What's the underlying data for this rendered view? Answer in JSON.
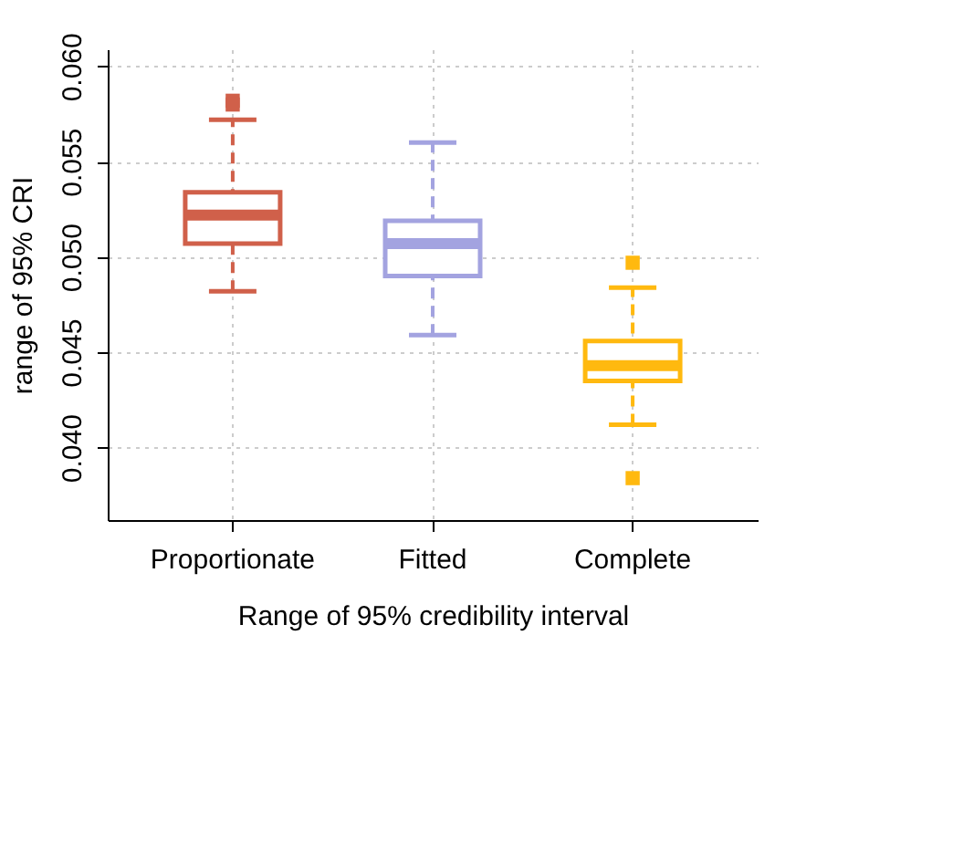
{
  "chart_data": {
    "type": "box",
    "xlabel": "Range of 95% credibility interval",
    "ylabel": "range of 95% CRI",
    "categories": [
      "Proportionate",
      "Fitted",
      "Complete"
    ],
    "colors": [
      "#d0604a",
      "#a3a3e0",
      "#ffb90f"
    ],
    "boxes": [
      {
        "low": 0.0482,
        "q1": 0.0507,
        "median": 0.0522,
        "q3": 0.0534,
        "high": 0.0572,
        "outliers": [
          0.0582,
          0.058
        ]
      },
      {
        "low": 0.0459,
        "q1": 0.049,
        "median": 0.0507,
        "q3": 0.0519,
        "high": 0.056
      },
      {
        "low": 0.0412,
        "q1": 0.0435,
        "median": 0.0443,
        "q3": 0.0456,
        "high": 0.0484,
        "outliers": [
          0.0497,
          0.0384
        ]
      }
    ],
    "ylim": [
      0.0362,
      0.0609
    ],
    "yticks": [
      {
        "value": 0.04,
        "label": "0.040"
      },
      0.045,
      {
        "value": 0.05,
        "label": "0.050"
      },
      0.055,
      {
        "value": 0.06,
        "label": "0.060"
      }
    ],
    "grid": true,
    "line_style": "dashed",
    "marker": "square"
  }
}
